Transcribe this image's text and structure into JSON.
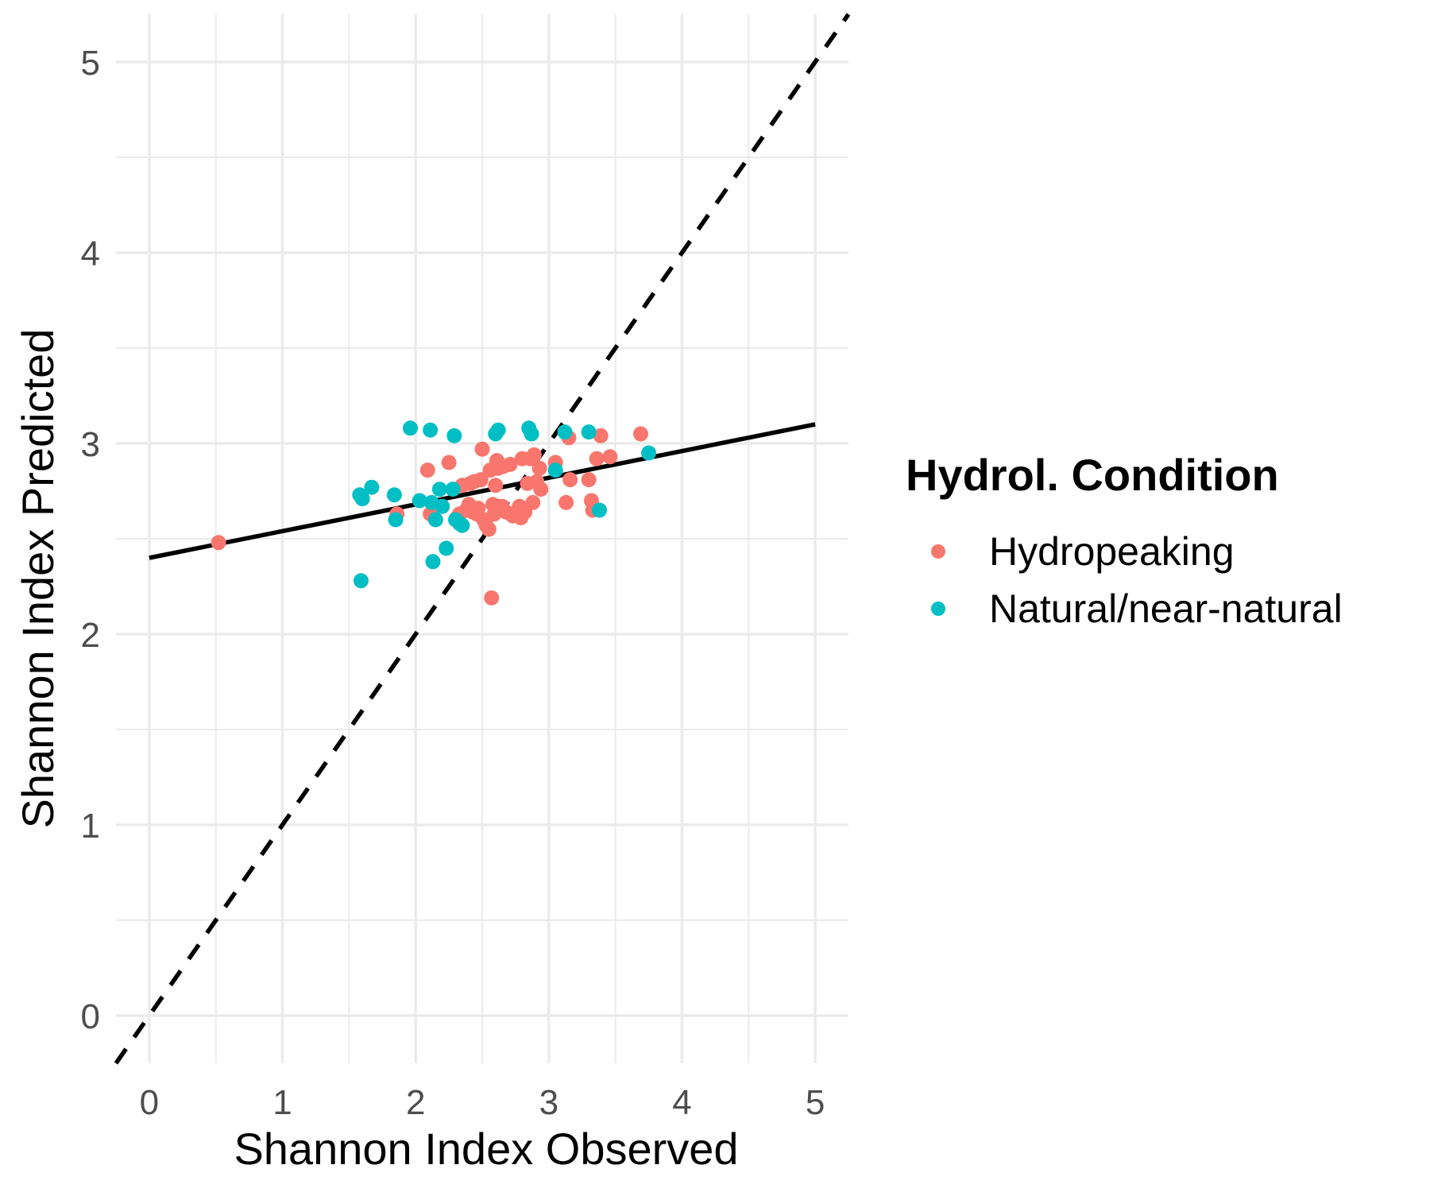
{
  "chart_data": {
    "type": "scatter",
    "title": "",
    "xlabel": "Shannon Index Observed",
    "ylabel": "Shannon Index Predicted",
    "xlim": [
      -0.25,
      5.25
    ],
    "ylim": [
      -0.25,
      5.25
    ],
    "x_ticks": [
      "0",
      "1",
      "2",
      "3",
      "4",
      "5"
    ],
    "y_ticks": [
      "0",
      "1",
      "2",
      "3",
      "4",
      "5"
    ],
    "grid": true,
    "legend": {
      "title": "Hydrol. Condition",
      "position": "right"
    },
    "series": [
      {
        "name": "Hydropeaking",
        "color": "#F8766D",
        "points": [
          [
            0.52,
            2.48
          ],
          [
            1.86,
            2.63
          ],
          [
            2.09,
            2.86
          ],
          [
            2.11,
            2.63
          ],
          [
            2.25,
            2.9
          ],
          [
            2.31,
            2.61
          ],
          [
            2.33,
            2.63
          ],
          [
            2.35,
            2.78
          ],
          [
            2.38,
            2.65
          ],
          [
            2.4,
            2.68
          ],
          [
            2.41,
            2.79
          ],
          [
            2.43,
            2.64
          ],
          [
            2.44,
            2.8
          ],
          [
            2.46,
            2.63
          ],
          [
            2.47,
            2.66
          ],
          [
            2.49,
            2.81
          ],
          [
            2.5,
            2.97
          ],
          [
            2.51,
            2.6
          ],
          [
            2.53,
            2.57
          ],
          [
            2.55,
            2.55
          ],
          [
            2.56,
            2.86
          ],
          [
            2.57,
            2.19
          ],
          [
            2.58,
            2.68
          ],
          [
            2.59,
            2.63
          ],
          [
            2.6,
            2.78
          ],
          [
            2.61,
            2.91
          ],
          [
            2.62,
            2.87
          ],
          [
            2.63,
            2.67
          ],
          [
            2.65,
            2.67
          ],
          [
            2.66,
            2.88
          ],
          [
            2.68,
            2.64
          ],
          [
            2.71,
            2.89
          ],
          [
            2.73,
            2.62
          ],
          [
            2.75,
            2.63
          ],
          [
            2.77,
            2.65
          ],
          [
            2.78,
            2.67
          ],
          [
            2.79,
            2.61
          ],
          [
            2.8,
            2.92
          ],
          [
            2.82,
            2.64
          ],
          [
            2.84,
            2.79
          ],
          [
            2.86,
            2.92
          ],
          [
            2.88,
            2.69
          ],
          [
            2.89,
            2.94
          ],
          [
            2.91,
            2.8
          ],
          [
            2.93,
            2.87
          ],
          [
            2.94,
            2.76
          ],
          [
            3.05,
            2.9
          ],
          [
            3.13,
            2.69
          ],
          [
            3.15,
            3.03
          ],
          [
            3.16,
            2.81
          ],
          [
            3.3,
            2.81
          ],
          [
            3.32,
            2.7
          ],
          [
            3.33,
            2.65
          ],
          [
            3.36,
            2.92
          ],
          [
            3.39,
            3.04
          ],
          [
            3.46,
            2.93
          ],
          [
            3.69,
            3.05
          ]
        ]
      },
      {
        "name": "Natural/near-natural",
        "color": "#00BFC4",
        "points": [
          [
            1.58,
            2.73
          ],
          [
            1.59,
            2.28
          ],
          [
            1.6,
            2.71
          ],
          [
            1.67,
            2.77
          ],
          [
            1.84,
            2.73
          ],
          [
            1.85,
            2.6
          ],
          [
            1.96,
            3.08
          ],
          [
            2.03,
            2.7
          ],
          [
            2.11,
            3.07
          ],
          [
            2.12,
            2.69
          ],
          [
            2.13,
            2.38
          ],
          [
            2.15,
            2.6
          ],
          [
            2.18,
            2.76
          ],
          [
            2.2,
            2.67
          ],
          [
            2.23,
            2.45
          ],
          [
            2.28,
            2.76
          ],
          [
            2.29,
            3.04
          ],
          [
            2.3,
            2.6
          ],
          [
            2.33,
            2.58
          ],
          [
            2.35,
            2.57
          ],
          [
            2.6,
            3.05
          ],
          [
            2.62,
            3.07
          ],
          [
            2.85,
            3.08
          ],
          [
            2.87,
            3.05
          ],
          [
            3.05,
            2.86
          ],
          [
            3.12,
            3.06
          ],
          [
            3.3,
            3.06
          ],
          [
            3.38,
            2.65
          ],
          [
            3.75,
            2.95
          ]
        ]
      }
    ],
    "reference_lines": [
      {
        "label": "1:1 line",
        "style": "dashed",
        "color": "#000000",
        "slope": 1,
        "intercept": 0
      },
      {
        "label": "linear fit",
        "style": "solid",
        "color": "#000000",
        "from": [
          0,
          2.4
        ],
        "to": [
          5,
          3.1
        ]
      }
    ]
  }
}
